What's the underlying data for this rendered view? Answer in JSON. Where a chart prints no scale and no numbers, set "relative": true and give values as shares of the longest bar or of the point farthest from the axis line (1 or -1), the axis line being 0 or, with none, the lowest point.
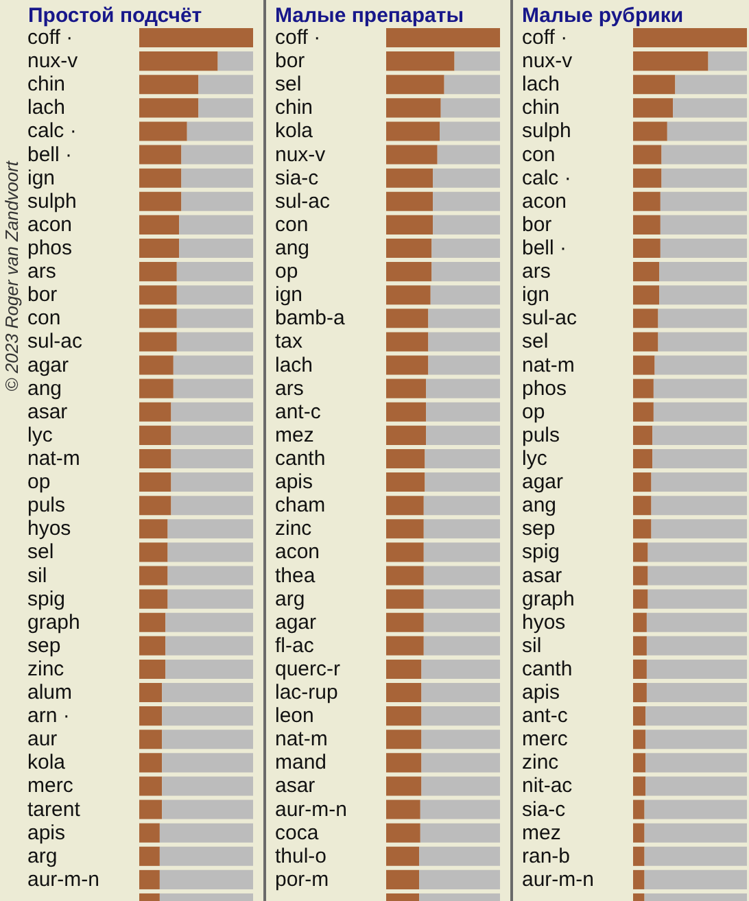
{
  "chart_data": [
    {
      "type": "bar",
      "orientation": "horizontal",
      "relative": true,
      "stacked": true,
      "title": "Простой подсчёт",
      "annotations": [
        "© 2023 Roger van Zandvoort"
      ],
      "categories": [
        "coff ·",
        "nux-v",
        "chin",
        "lach",
        "calc ·",
        "bell ·",
        "ign",
        "sulph",
        "acon",
        "phos",
        "ars",
        "bor",
        "con",
        "sul-ac",
        "agar",
        "ang",
        "asar",
        "lyc",
        "nat-m",
        "op",
        "puls",
        "hyos",
        "sel",
        "sil",
        "spig",
        "graph",
        "sep",
        "zinc",
        "alum",
        "arn ·",
        "aur",
        "kola",
        "merc",
        "tarent",
        "apis",
        "arg",
        "aur-m-n",
        null
      ],
      "series": [
        {
          "color": "#a86438",
          "values": [
            1.0,
            0.69,
            0.52,
            0.52,
            0.42,
            0.37,
            0.37,
            0.37,
            0.35,
            0.35,
            0.33,
            0.33,
            0.33,
            0.33,
            0.3,
            0.3,
            0.28,
            0.28,
            0.28,
            0.28,
            0.28,
            0.25,
            0.25,
            0.25,
            0.25,
            0.23,
            0.23,
            0.23,
            0.2,
            0.2,
            0.2,
            0.2,
            0.2,
            0.2,
            0.18,
            0.18,
            0.18,
            0.18
          ]
        },
        {
          "color": "#bcbcbc",
          "values": [
            0.0,
            0.31,
            0.48,
            0.48,
            0.58,
            0.63,
            0.63,
            0.63,
            0.65,
            0.65,
            0.67,
            0.67,
            0.67,
            0.67,
            0.7,
            0.7,
            0.72,
            0.72,
            0.72,
            0.72,
            0.72,
            0.75,
            0.75,
            0.75,
            0.75,
            0.77,
            0.77,
            0.77,
            0.8,
            0.8,
            0.8,
            0.8,
            0.8,
            0.8,
            0.82,
            0.82,
            0.82,
            0.82
          ]
        }
      ]
    },
    {
      "type": "bar",
      "orientation": "horizontal",
      "relative": true,
      "stacked": true,
      "title": "Малые препараты",
      "categories": [
        "coff ·",
        "bor",
        "sel",
        "chin",
        "kola",
        "nux-v",
        "sia-c",
        "sul-ac",
        "con",
        "ang",
        "op",
        "ign",
        "bamb-a",
        "tax",
        "lach",
        "ars",
        "ant-c",
        "mez",
        "canth",
        "apis",
        "cham",
        "zinc",
        "acon",
        "thea",
        "arg",
        "agar",
        "fl-ac",
        "querc-r",
        "lac-rup",
        "leon",
        "nat-m",
        "mand",
        "asar",
        "aur-m-n",
        "coca",
        "thul-o",
        "por-m",
        null
      ],
      "series": [
        {
          "color": "#a86438",
          "values": [
            1.0,
            0.6,
            0.51,
            0.48,
            0.47,
            0.45,
            0.41,
            0.41,
            0.41,
            0.4,
            0.4,
            0.39,
            0.37,
            0.37,
            0.37,
            0.35,
            0.35,
            0.35,
            0.34,
            0.34,
            0.33,
            0.33,
            0.33,
            0.33,
            0.33,
            0.33,
            0.33,
            0.31,
            0.31,
            0.31,
            0.31,
            0.31,
            0.31,
            0.3,
            0.3,
            0.29,
            0.29,
            0.29
          ]
        },
        {
          "color": "#bcbcbc",
          "values": [
            0.0,
            0.4,
            0.49,
            0.52,
            0.53,
            0.55,
            0.59,
            0.59,
            0.59,
            0.6,
            0.6,
            0.61,
            0.63,
            0.63,
            0.63,
            0.65,
            0.65,
            0.65,
            0.66,
            0.66,
            0.67,
            0.67,
            0.67,
            0.67,
            0.67,
            0.67,
            0.67,
            0.69,
            0.69,
            0.69,
            0.69,
            0.69,
            0.69,
            0.7,
            0.7,
            0.71,
            0.71,
            0.71
          ]
        }
      ]
    },
    {
      "type": "bar",
      "orientation": "horizontal",
      "relative": true,
      "stacked": true,
      "title": "Малые рубрики",
      "categories": [
        "coff ·",
        "nux-v",
        "lach",
        "chin",
        "sulph",
        "con",
        "calc ·",
        "acon",
        "bor",
        "bell ·",
        "ars",
        "ign",
        "sul-ac",
        "sel",
        "nat-m",
        "phos",
        "op",
        "puls",
        "lyc",
        "agar",
        "ang",
        "sep",
        "spig",
        "asar",
        "graph",
        "hyos",
        "sil",
        "canth",
        "apis",
        "ant-c",
        "merc",
        "zinc",
        "nit-ac",
        "sia-c",
        "mez",
        "ran-b",
        "aur-m-n",
        null
      ],
      "series": [
        {
          "color": "#a86438",
          "values": [
            1.0,
            0.66,
            0.37,
            0.35,
            0.3,
            0.25,
            0.25,
            0.24,
            0.24,
            0.24,
            0.23,
            0.23,
            0.22,
            0.22,
            0.19,
            0.18,
            0.18,
            0.17,
            0.17,
            0.16,
            0.16,
            0.16,
            0.13,
            0.13,
            0.13,
            0.12,
            0.12,
            0.12,
            0.12,
            0.11,
            0.11,
            0.11,
            0.11,
            0.1,
            0.1,
            0.1,
            0.1,
            0.1
          ]
        },
        {
          "color": "#bcbcbc",
          "values": [
            0.0,
            0.34,
            0.63,
            0.65,
            0.7,
            0.75,
            0.75,
            0.76,
            0.76,
            0.76,
            0.77,
            0.77,
            0.78,
            0.78,
            0.81,
            0.82,
            0.82,
            0.83,
            0.83,
            0.84,
            0.84,
            0.84,
            0.87,
            0.87,
            0.87,
            0.88,
            0.88,
            0.88,
            0.88,
            0.89,
            0.89,
            0.89,
            0.89,
            0.9,
            0.9,
            0.9,
            0.9,
            0.9
          ]
        }
      ]
    }
  ]
}
